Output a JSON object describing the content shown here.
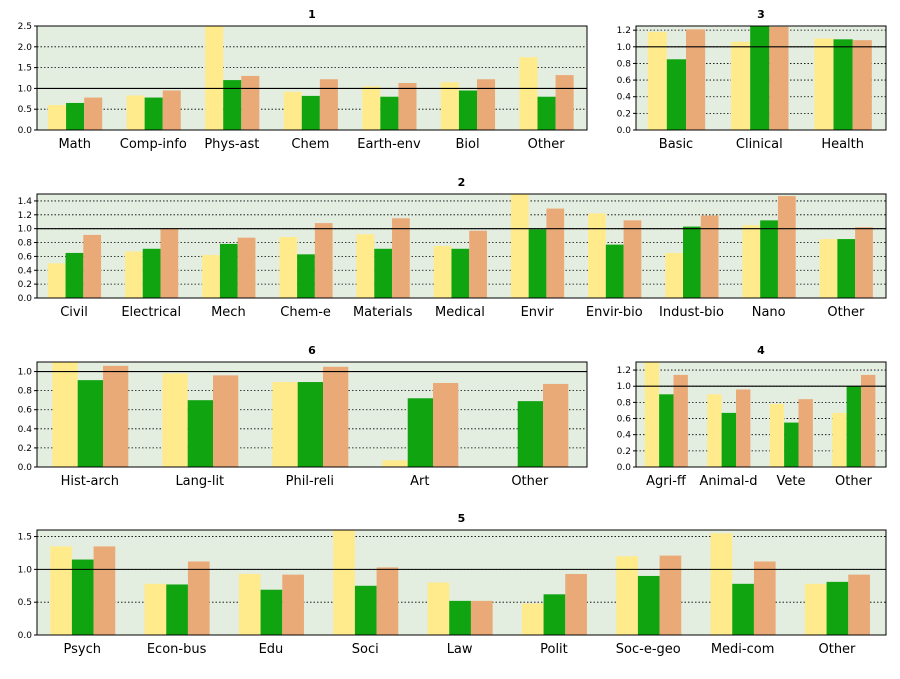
{
  "colors": {
    "s1": "#ffeb8c",
    "s2": "#11a411",
    "s3": "#eaaa78",
    "plot_bg": "#e3eee1"
  },
  "chart_data": [
    {
      "type": "bar",
      "title": "1",
      "categories": [
        "Math",
        "Comp-info",
        "Phys-ast",
        "Chem",
        "Earth-env",
        "Biol",
        "Other"
      ],
      "series": [
        {
          "values": [
            0.6,
            0.83,
            2.55,
            0.92,
            1.05,
            1.15,
            1.75
          ]
        },
        {
          "values": [
            0.65,
            0.78,
            1.2,
            0.82,
            0.8,
            0.95,
            0.8
          ]
        },
        {
          "values": [
            0.78,
            0.95,
            1.3,
            1.22,
            1.13,
            1.22,
            1.32
          ]
        }
      ],
      "ylim": [
        0,
        2.5
      ],
      "yticks": [
        "0.0",
        "0.5",
        "1.0",
        "1.5",
        "2.0",
        "2.5"
      ],
      "reference_line": 1.0,
      "grid": true
    },
    {
      "type": "bar",
      "title": "3",
      "categories": [
        "Basic",
        "Clinical",
        "Health"
      ],
      "series": [
        {
          "values": [
            1.18,
            1.06,
            1.1
          ]
        },
        {
          "values": [
            0.85,
            1.3,
            1.09
          ]
        },
        {
          "values": [
            1.21,
            1.24,
            1.08
          ]
        }
      ],
      "ylim": [
        0,
        1.25
      ],
      "yticks": [
        "0.0",
        "0.2",
        "0.4",
        "0.6",
        "0.8",
        "1.0",
        "1.2"
      ],
      "reference_line": 1.0,
      "grid": true
    },
    {
      "type": "bar",
      "title": "2",
      "categories": [
        "Civil",
        "Electrical",
        "Mech",
        "Chem-e",
        "Materials",
        "Medical",
        "Envir",
        "Envir-bio",
        "Indust-bio",
        "Nano",
        "Other"
      ],
      "series": [
        {
          "values": [
            0.5,
            0.67,
            0.62,
            0.88,
            0.92,
            0.75,
            1.5,
            1.22,
            0.65,
            1.05,
            0.85
          ]
        },
        {
          "values": [
            0.65,
            0.71,
            0.78,
            0.63,
            0.71,
            0.71,
            0.99,
            0.77,
            1.03,
            1.12,
            0.85
          ]
        },
        {
          "values": [
            0.91,
            1.0,
            0.87,
            1.08,
            1.15,
            0.97,
            1.29,
            1.12,
            1.19,
            1.47,
            1.02
          ]
        }
      ],
      "ylim": [
        0,
        1.5
      ],
      "yticks": [
        "0.0",
        "0.2",
        "0.4",
        "0.6",
        "0.8",
        "1.0",
        "1.2",
        "1.4"
      ],
      "reference_line": 1.0,
      "grid": true
    },
    {
      "type": "bar",
      "title": "6",
      "categories": [
        "Hist-arch",
        "Lang-lit",
        "Phil-reli",
        "Art",
        "Other"
      ],
      "series": [
        {
          "values": [
            1.1,
            0.98,
            0.89,
            0.07,
            0.0
          ]
        },
        {
          "values": [
            0.91,
            0.7,
            0.89,
            0.72,
            0.69
          ]
        },
        {
          "values": [
            1.06,
            0.96,
            1.05,
            0.88,
            0.87
          ]
        }
      ],
      "ylim": [
        0,
        1.1
      ],
      "yticks": [
        "0.0",
        "0.2",
        "0.4",
        "0.6",
        "0.8",
        "1.0"
      ],
      "reference_line": 1.0,
      "grid": true
    },
    {
      "type": "bar",
      "title": "4",
      "categories": [
        "Agri-ff",
        "Animal-d",
        "Vete",
        "Other"
      ],
      "series": [
        {
          "values": [
            1.3,
            0.9,
            0.78,
            0.67
          ]
        },
        {
          "values": [
            0.9,
            0.67,
            0.55,
            1.0
          ]
        },
        {
          "values": [
            1.14,
            0.96,
            0.84,
            1.14
          ]
        }
      ],
      "ylim": [
        0,
        1.3
      ],
      "yticks": [
        "0.0",
        "0.2",
        "0.4",
        "0.6",
        "0.8",
        "1.0",
        "1.2"
      ],
      "reference_line": 1.0,
      "grid": true
    },
    {
      "type": "bar",
      "title": "5",
      "categories": [
        "Psych",
        "Econ-bus",
        "Edu",
        "Soci",
        "Law",
        "Polit",
        "Soc-e-geo",
        "Medi-com",
        "Other"
      ],
      "series": [
        {
          "values": [
            1.35,
            0.78,
            0.93,
            1.6,
            0.8,
            0.48,
            1.2,
            1.55,
            0.78
          ]
        },
        {
          "values": [
            1.15,
            0.77,
            0.69,
            0.75,
            0.52,
            0.62,
            0.9,
            0.78,
            0.81
          ]
        },
        {
          "values": [
            1.35,
            1.12,
            0.92,
            1.03,
            0.52,
            0.93,
            1.21,
            1.12,
            0.92
          ]
        }
      ],
      "ylim": [
        0,
        1.6
      ],
      "yticks": [
        "0.0",
        "0.5",
        "1.0",
        "1.5"
      ],
      "reference_line": 1.0,
      "grid": true
    }
  ]
}
